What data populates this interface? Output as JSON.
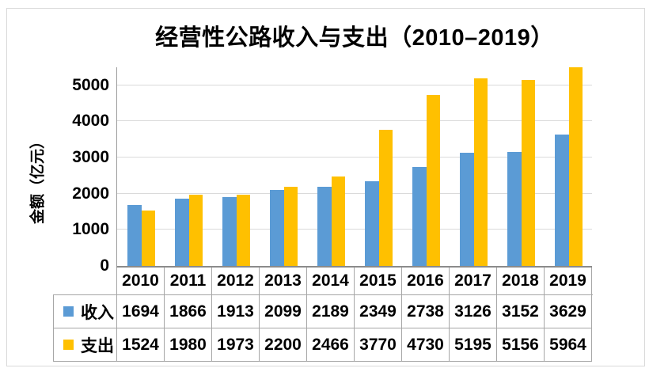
{
  "frame": {
    "background": "#ffffff",
    "border_color": "#d9d9d9"
  },
  "chart_data": {
    "type": "bar",
    "title": "经营性公路收入与支出（2010–2019）",
    "ylabel": "金额（亿元）",
    "xlabel": "",
    "categories": [
      "2010",
      "2011",
      "2012",
      "2013",
      "2014",
      "2015",
      "2016",
      "2017",
      "2018",
      "2019"
    ],
    "series": [
      {
        "name": "收入",
        "color": "#5B9BD5",
        "values": [
          1694,
          1866,
          1913,
          2099,
          2189,
          2349,
          2738,
          3126,
          3152,
          3629
        ]
      },
      {
        "name": "支出",
        "color": "#FFC000",
        "values": [
          1524,
          1980,
          1973,
          2200,
          2466,
          3770,
          4730,
          5195,
          5156,
          5964
        ]
      }
    ],
    "ylim": [
      0,
      5500
    ],
    "yticks": [
      0,
      1000,
      2000,
      3000,
      4000,
      5000
    ],
    "grid": true,
    "legend_position": "data-table-left",
    "data_table": true,
    "colors": {
      "gridline": "#dadada",
      "y_axis_line": "#9c9c9c",
      "x_axis_line": "#8b8b8b",
      "table_border": "#a6a6a6",
      "text": "#000000"
    }
  }
}
